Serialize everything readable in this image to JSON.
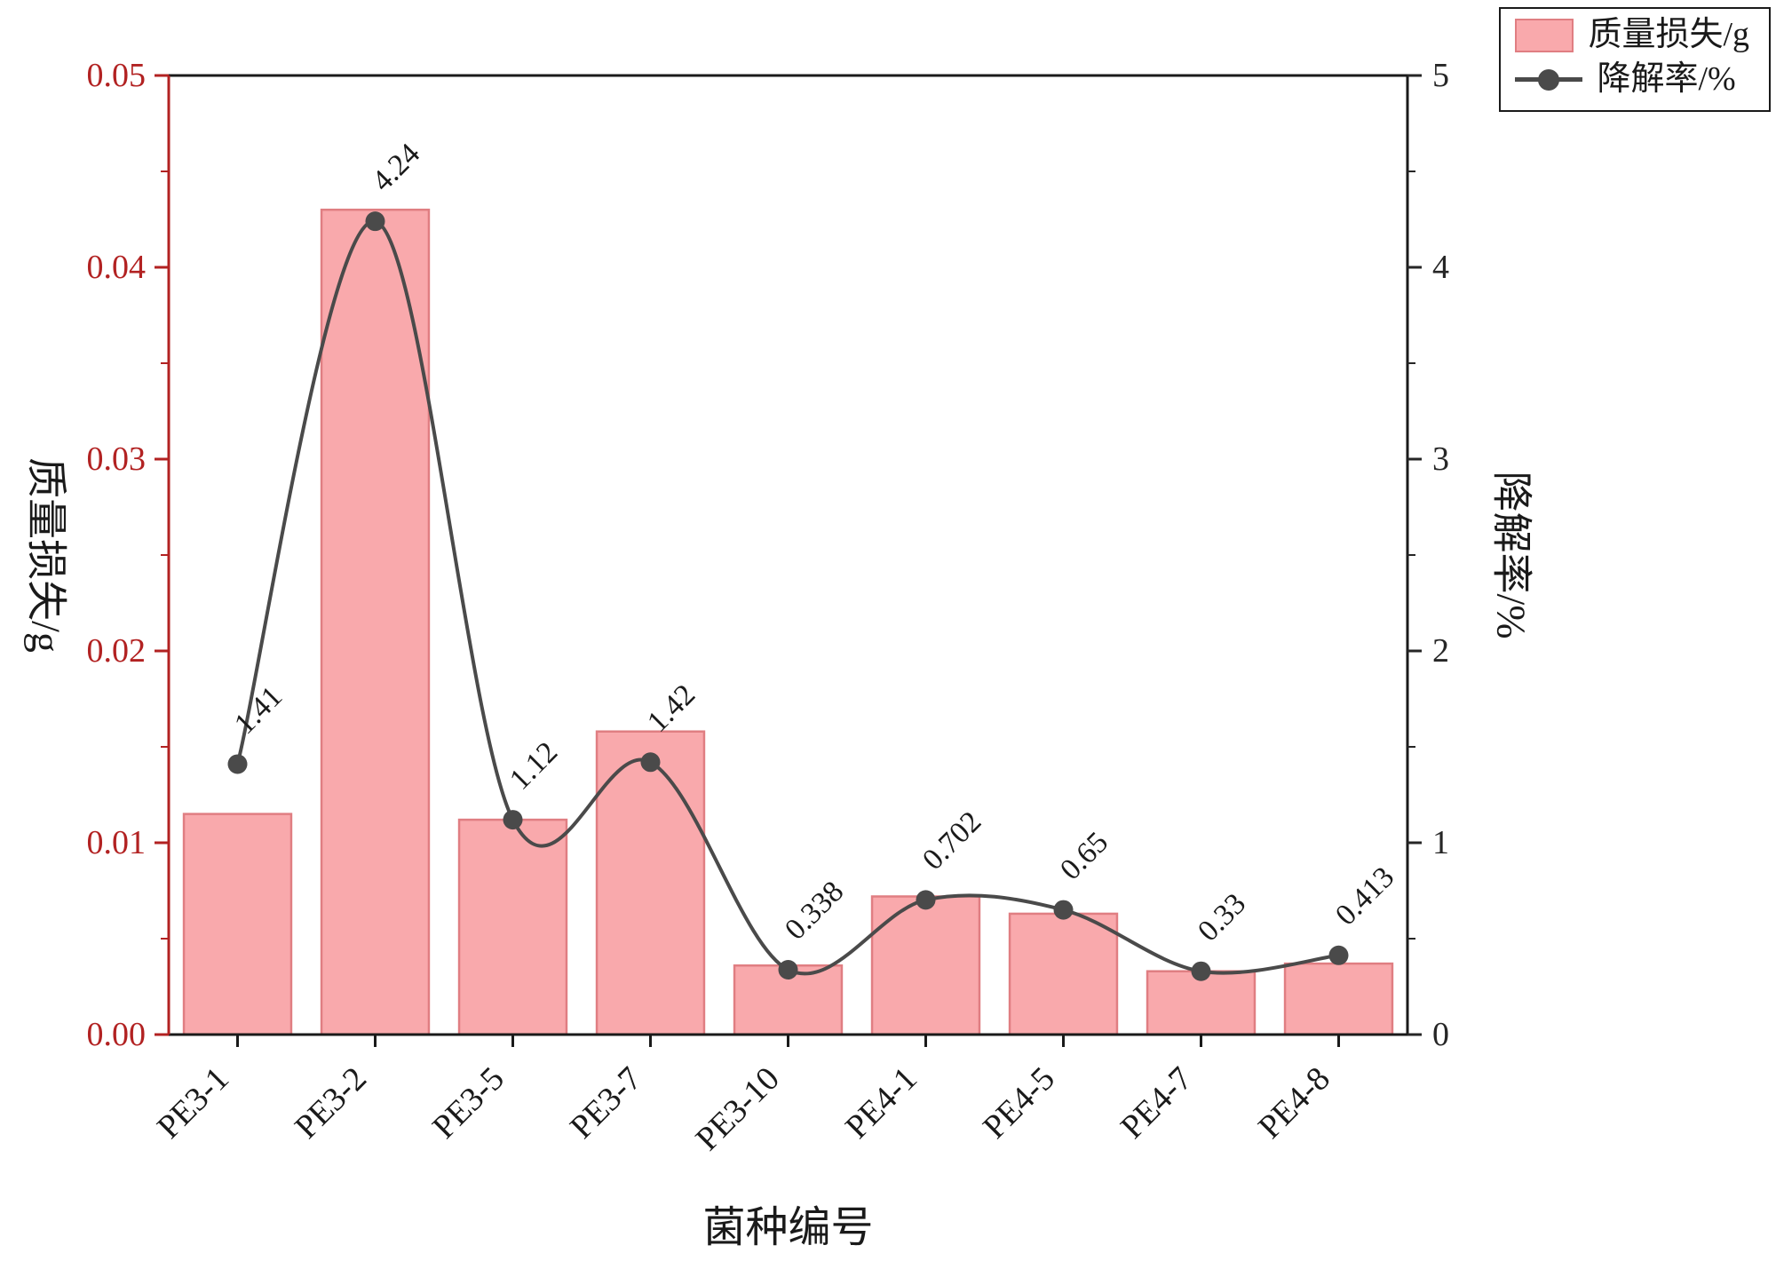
{
  "chart_data": {
    "type": "bar",
    "subtype": "bar+line dual-axis",
    "title": "",
    "xlabel": "菌种编号",
    "categories": [
      "PE3-1",
      "PE3-2",
      "PE3-5",
      "PE3-7",
      "PE3-10",
      "PE4-1",
      "PE4-5",
      "PE4-7",
      "PE4-8"
    ],
    "left_axis": {
      "label": "质量损失/g",
      "range": [
        0,
        0.05
      ],
      "ticks": [
        "0.00",
        "0.01",
        "0.02",
        "0.03",
        "0.04",
        "0.05"
      ],
      "minor_tick_step": 0.005,
      "color": "#B22222"
    },
    "right_axis": {
      "label": "降解率/%",
      "range": [
        0,
        5
      ],
      "ticks": [
        "0",
        "1",
        "2",
        "3",
        "4",
        "5"
      ],
      "minor_tick_step": 0.5,
      "color": "#262626"
    },
    "series": [
      {
        "name": "质量损失/g",
        "type": "bar",
        "axis": "left",
        "values": [
          0.0115,
          0.043,
          0.0112,
          0.0158,
          0.0036,
          0.0072,
          0.0063,
          0.0033,
          0.0037
        ],
        "fill": "#F9A9AC",
        "stroke": "#E07E82"
      },
      {
        "name": "降解率/%",
        "type": "line",
        "axis": "right",
        "values": [
          1.41,
          4.24,
          1.12,
          1.42,
          0.338,
          0.702,
          0.65,
          0.33,
          0.413
        ],
        "point_labels": [
          "1.41",
          "4.24",
          "1.12",
          "1.42",
          "0.338",
          "0.702",
          "0.65",
          "0.33",
          "0.413"
        ],
        "color": "#4A4A4A",
        "marker": "circle"
      }
    ],
    "legend": {
      "position": "top-right",
      "entries": [
        "质量损失/g",
        "降解率/%"
      ]
    },
    "grid": false,
    "frame_color": "#1A1A1A",
    "text_color": "#1A1A1A"
  }
}
